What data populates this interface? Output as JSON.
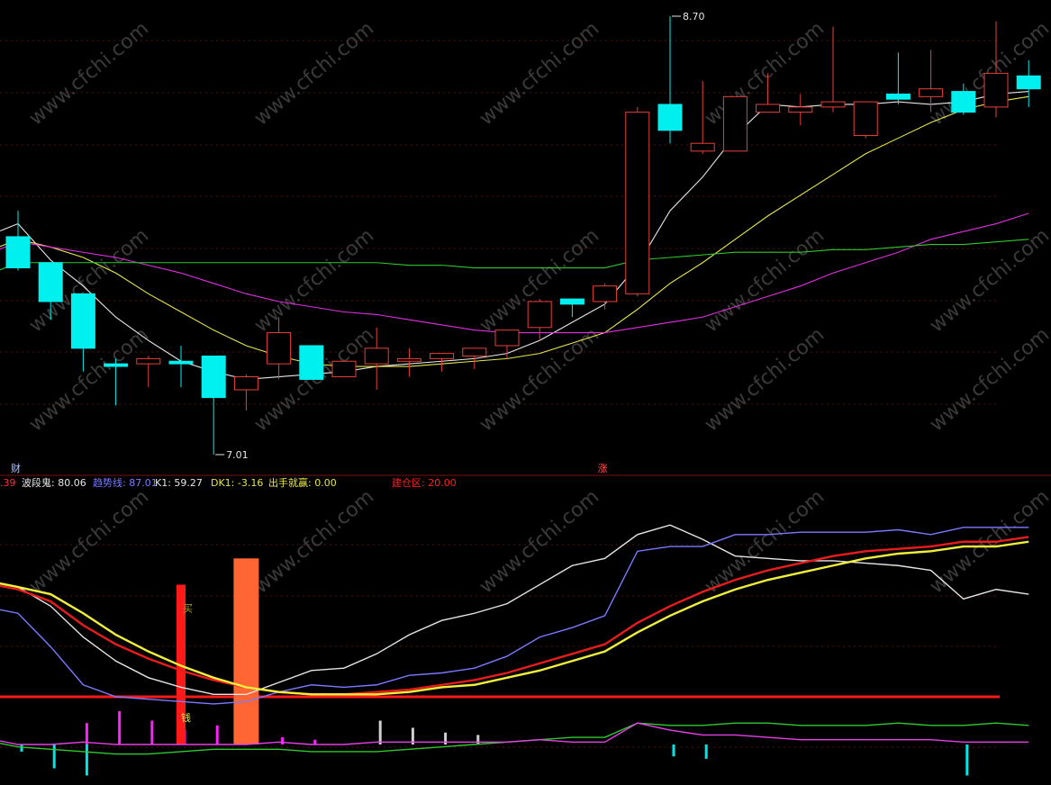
{
  "chart_data": [
    {
      "type": "candlestick",
      "panel": "price",
      "ylim": [
        6.75,
        8.85
      ],
      "candles": [
        {
          "open": 7.85,
          "high": 7.95,
          "low": 7.72,
          "close": 7.73
        },
        {
          "open": 7.75,
          "high": 7.75,
          "low": 7.53,
          "close": 7.6
        },
        {
          "open": 7.63,
          "high": 7.63,
          "low": 7.33,
          "close": 7.42
        },
        {
          "open": 7.36,
          "high": 7.38,
          "low": 7.2,
          "close": 7.35
        },
        {
          "open": 7.36,
          "high": 7.39,
          "low": 7.27,
          "close": 7.38
        },
        {
          "open": 7.37,
          "high": 7.43,
          "low": 7.27,
          "close": 7.36
        },
        {
          "open": 7.39,
          "high": 7.39,
          "low": 7.01,
          "close": 7.23
        },
        {
          "open": 7.26,
          "high": 7.32,
          "low": 7.18,
          "close": 7.31
        },
        {
          "open": 7.36,
          "high": 7.54,
          "low": 7.3,
          "close": 7.48
        },
        {
          "open": 7.43,
          "high": 7.43,
          "low": 7.3,
          "close": 7.3
        },
        {
          "open": 7.31,
          "high": 7.37,
          "low": 7.31,
          "close": 7.37
        },
        {
          "open": 7.36,
          "high": 7.5,
          "low": 7.26,
          "close": 7.42
        },
        {
          "open": 7.37,
          "high": 7.42,
          "low": 7.31,
          "close": 7.38
        },
        {
          "open": 7.38,
          "high": 7.4,
          "low": 7.33,
          "close": 7.4
        },
        {
          "open": 7.39,
          "high": 7.41,
          "low": 7.34,
          "close": 7.42
        },
        {
          "open": 7.43,
          "high": 7.47,
          "low": 7.38,
          "close": 7.49
        },
        {
          "open": 7.5,
          "high": 7.61,
          "low": 7.45,
          "close": 7.6
        },
        {
          "open": 7.61,
          "high": 7.61,
          "low": 7.54,
          "close": 7.59
        },
        {
          "open": 7.6,
          "high": 7.67,
          "low": 7.57,
          "close": 7.66
        },
        {
          "open": 7.63,
          "high": 8.35,
          "low": 7.62,
          "close": 8.33
        },
        {
          "open": 8.36,
          "high": 8.7,
          "low": 8.21,
          "close": 8.26
        },
        {
          "open": 8.18,
          "high": 8.45,
          "low": 8.17,
          "close": 8.21
        },
        {
          "open": 8.18,
          "high": 8.39,
          "low": 8.18,
          "close": 8.39
        },
        {
          "open": 8.33,
          "high": 8.48,
          "low": 8.34,
          "close": 8.36
        },
        {
          "open": 8.33,
          "high": 8.4,
          "low": 8.28,
          "close": 8.35
        },
        {
          "open": 8.35,
          "high": 8.66,
          "low": 8.33,
          "close": 8.37
        },
        {
          "open": 8.24,
          "high": 8.37,
          "low": 8.23,
          "close": 8.37
        },
        {
          "open": 8.4,
          "high": 8.56,
          "low": 8.36,
          "close": 8.38
        },
        {
          "open": 8.39,
          "high": 8.57,
          "low": 8.33,
          "close": 8.42
        },
        {
          "open": 8.41,
          "high": 8.44,
          "low": 8.32,
          "close": 8.33
        },
        {
          "open": 8.35,
          "high": 8.68,
          "low": 8.31,
          "close": 8.48
        },
        {
          "open": 8.47,
          "high": 8.53,
          "low": 8.35,
          "close": 8.42
        }
      ],
      "ma_lines": [
        {
          "color": "#e8e8e8",
          "values": [
            7.9,
            7.76,
            7.66,
            7.54,
            7.45,
            7.37,
            7.33,
            7.3,
            7.31,
            7.32,
            7.33,
            7.35,
            7.36,
            7.37,
            7.38,
            7.4,
            7.45,
            7.52,
            7.59,
            7.74,
            7.95,
            8.08,
            8.24,
            8.36,
            8.35,
            8.36,
            8.36,
            8.37,
            8.36,
            8.37,
            8.4,
            8.41
          ]
        },
        {
          "color": "#e6e64d",
          "values": [
            7.84,
            7.81,
            7.77,
            7.71,
            7.63,
            7.56,
            7.49,
            7.43,
            7.39,
            7.36,
            7.35,
            7.35,
            7.35,
            7.36,
            7.37,
            7.38,
            7.4,
            7.44,
            7.48,
            7.57,
            7.67,
            7.75,
            7.84,
            7.93,
            8.01,
            8.09,
            8.17,
            8.23,
            8.29,
            8.34,
            8.37,
            8.39
          ]
        },
        {
          "color": "#e030e0",
          "values": [
            7.83,
            7.81,
            7.79,
            7.77,
            7.74,
            7.71,
            7.67,
            7.63,
            7.6,
            7.58,
            7.56,
            7.55,
            7.53,
            7.51,
            7.49,
            7.48,
            7.48,
            7.48,
            7.48,
            7.5,
            7.52,
            7.54,
            7.58,
            7.62,
            7.66,
            7.71,
            7.75,
            7.79,
            7.84,
            7.87,
            7.9,
            7.94
          ]
        },
        {
          "color": "#2ec92e",
          "values": [
            7.75,
            7.75,
            7.75,
            7.75,
            7.75,
            7.75,
            7.75,
            7.75,
            7.75,
            7.75,
            7.75,
            7.75,
            7.74,
            7.74,
            7.73,
            7.73,
            7.73,
            7.73,
            7.73,
            7.76,
            7.77,
            7.78,
            7.79,
            7.79,
            7.79,
            7.8,
            7.8,
            7.81,
            7.82,
            7.82,
            7.83,
            7.84
          ]
        }
      ],
      "annotations": [
        {
          "text": "8.70",
          "candle": 20,
          "value": 8.7
        },
        {
          "text": "7.01",
          "candle": 6,
          "value": 7.01
        },
        {
          "text": "财",
          "candle": 0,
          "position": "bottom"
        },
        {
          "text": "涨",
          "candle": 18,
          "position": "bottom"
        }
      ]
    },
    {
      "type": "line",
      "panel": "indicator",
      "ylim": [
        -18,
        100
      ],
      "legend": [
        {
          "text": ".39",
          "color": "#ff3030"
        },
        {
          "text": "波段鬼: 80.06",
          "color": "#e6e6e6"
        },
        {
          "text": "趋势线: 87.01",
          "color": "#7a7aff"
        },
        {
          "text": "K1: 59.27",
          "color": "#e6e6e6"
        },
        {
          "text": "DK1: -3.16",
          "color": "#e6e64d"
        },
        {
          "text": "出手就赢: 0.00",
          "color": "#e6e64d"
        },
        {
          "text": "建仓区: 20.00",
          "color": "#ff2020"
        }
      ],
      "series": [
        {
          "color": "#e6e6e6",
          "values": [
            66,
            58,
            45,
            35,
            28,
            24,
            21,
            21,
            26,
            31,
            32,
            38,
            46,
            52,
            55,
            59,
            67,
            75,
            78,
            88,
            92,
            86,
            79,
            78,
            77,
            77,
            76,
            75,
            73,
            61,
            65,
            63
          ]
        },
        {
          "color": "#7a7aff",
          "values": [
            55,
            41,
            25,
            20,
            19,
            18,
            17,
            18,
            22,
            25,
            24,
            25,
            29,
            30,
            32,
            37,
            45,
            49,
            54,
            81,
            83,
            83,
            88,
            88,
            89,
            89,
            89,
            90,
            88,
            91,
            91,
            91
          ]
        },
        {
          "color": "#e81c1c",
          "values": [
            65,
            60,
            50,
            42,
            36,
            31,
            27,
            24,
            22,
            21,
            21,
            22,
            23,
            25,
            27,
            30,
            34,
            38,
            42,
            51,
            58,
            64,
            69,
            73,
            76,
            79,
            81,
            82,
            83,
            85,
            85,
            87
          ]
        },
        {
          "color": "#f0f03c",
          "values": [
            66,
            63,
            55,
            46,
            39,
            33,
            28,
            24,
            22,
            21,
            21,
            21,
            22,
            24,
            25,
            28,
            31,
            35,
            39,
            47,
            54,
            60,
            65,
            69,
            72,
            75,
            78,
            80,
            81,
            83,
            83,
            85
          ]
        },
        {
          "color": "#2ec92e",
          "values": [
            -1,
            -2,
            -3,
            -4,
            -4,
            -3,
            -2,
            -2,
            -2,
            -3,
            -3,
            -3,
            -2,
            -1,
            0,
            1,
            2,
            3,
            3,
            9,
            8,
            8,
            9,
            9,
            8,
            8,
            8,
            9,
            8,
            8,
            9,
            8
          ]
        },
        {
          "color": "#e640e6",
          "values": [
            0,
            0,
            1,
            0,
            0,
            0,
            0,
            0,
            1,
            0,
            0,
            1,
            1,
            1,
            1,
            1,
            2,
            1,
            1,
            9,
            6,
            4,
            4,
            3,
            2,
            2,
            2,
            2,
            2,
            1,
            1,
            1
          ]
        }
      ],
      "histogram": [
        {
          "candle": 2,
          "value": 9,
          "color": "#ff20ff"
        },
        {
          "candle": 3,
          "value": 14,
          "color": "#ff20ff"
        },
        {
          "candle": 4,
          "value": 10,
          "color": "#ff20ff"
        },
        {
          "candle": 5,
          "value": 6,
          "color": "#ff20ff"
        },
        {
          "candle": 6,
          "value": 8,
          "color": "#ff20ff"
        },
        {
          "candle": 8,
          "value": 3,
          "color": "#ff20ff"
        },
        {
          "candle": 9,
          "value": 2,
          "color": "#ff20ff"
        },
        {
          "candle": 11,
          "value": 10,
          "color": "#d0d0d0"
        },
        {
          "candle": 12,
          "value": 7,
          "color": "#d0d0d0"
        },
        {
          "candle": 13,
          "value": 5,
          "color": "#d0d0d0"
        },
        {
          "candle": 14,
          "value": 4,
          "color": "#d0d0d0"
        },
        {
          "candle": 0,
          "value": -3,
          "color": "#00e5e5"
        },
        {
          "candle": 1,
          "value": -10,
          "color": "#00e5e5"
        },
        {
          "candle": 2,
          "value": -13,
          "color": "#00e5e5"
        },
        {
          "candle": 20,
          "value": -5,
          "color": "#00e5e5"
        },
        {
          "candle": 21,
          "value": -6,
          "color": "#00e5e5"
        },
        {
          "candle": 29,
          "value": -13,
          "color": "#00e5e5"
        }
      ],
      "signal_bars": [
        {
          "candle": 5,
          "value": 67,
          "color": "#ff1a1a",
          "label_top": "买",
          "label_bottom": "钱"
        },
        {
          "candle": 7,
          "value": 78,
          "color": "#ff6633",
          "label_top": "",
          "label_bottom": ""
        }
      ],
      "reference_line": {
        "value": 20,
        "color": "#ff1a1a"
      }
    }
  ],
  "watermark": "www.cfchi.com"
}
